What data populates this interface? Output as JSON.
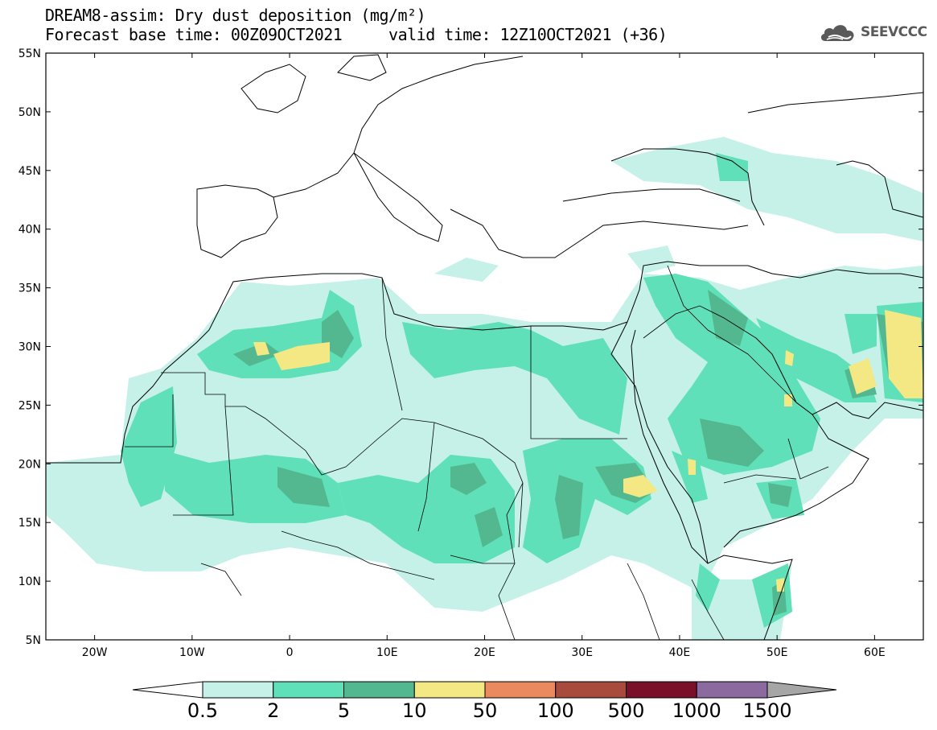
{
  "title": {
    "line1": "DREAM8-assim: Dry dust deposition (mg/m²)",
    "base_label": "Forecast base time: 00Z09OCT2021",
    "valid_label": "valid time: 12Z10OCT2021 (+36)"
  },
  "logo": {
    "text": "SEEVCCC",
    "icon": "cloud-icon"
  },
  "map": {
    "lon_range": [
      -25,
      65
    ],
    "lat_range": [
      5,
      55
    ],
    "lat_ticks": [
      "5N",
      "10N",
      "15N",
      "20N",
      "25N",
      "30N",
      "35N",
      "40N",
      "45N",
      "50N",
      "55N"
    ],
    "lon_ticks": [
      "20W",
      "10W",
      "0",
      "10E",
      "20E",
      "30E",
      "40E",
      "50E",
      "60E"
    ]
  },
  "colorbar": {
    "labels": [
      "0.5",
      "2",
      "5",
      "10",
      "50",
      "100",
      "500",
      "1000",
      "1500"
    ],
    "colors": [
      "#c5f1e8",
      "#5fe0b8",
      "#53b88f",
      "#f4e884",
      "#ec8a5f",
      "#a84a3c",
      "#7a0f2a",
      "#8c6aa0"
    ],
    "under_color": "#ffffff",
    "over_color": "#a6a6a6"
  },
  "fill_colors": {
    "level1": "#c5f1e8",
    "level2": "#5fe0b8",
    "level3": "#53b88f",
    "level4": "#f4e884"
  }
}
